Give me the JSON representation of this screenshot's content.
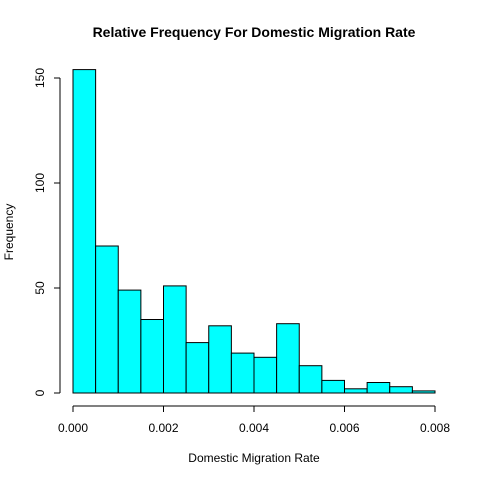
{
  "chart_data": {
    "type": "bar",
    "title": "Relative Frequency For  Domestic  Migration Rate",
    "xlabel": "Domestic  Migration Rate",
    "ylabel": "Frequency",
    "bin_edges": [
      0.0,
      0.0005,
      0.001,
      0.0015,
      0.002,
      0.0025,
      0.003,
      0.0035,
      0.004,
      0.0045,
      0.005,
      0.0055,
      0.006,
      0.0065,
      0.007,
      0.0075,
      0.008
    ],
    "values": [
      154,
      70,
      49,
      35,
      51,
      24,
      32,
      19,
      17,
      33,
      13,
      6,
      2,
      5,
      3,
      1
    ],
    "xlim": [
      0.0,
      0.008
    ],
    "ylim": [
      0,
      160
    ],
    "x_ticks": [
      0.0,
      0.002,
      0.004,
      0.006,
      0.008
    ],
    "x_tick_labels": [
      "0.000",
      "0.002",
      "0.004",
      "0.006",
      "0.008"
    ],
    "y_ticks": [
      0,
      50,
      100,
      150
    ],
    "y_tick_labels": [
      "0",
      "50",
      "100",
      "150"
    ],
    "bar_color": "#00FFFF",
    "grid": false
  }
}
